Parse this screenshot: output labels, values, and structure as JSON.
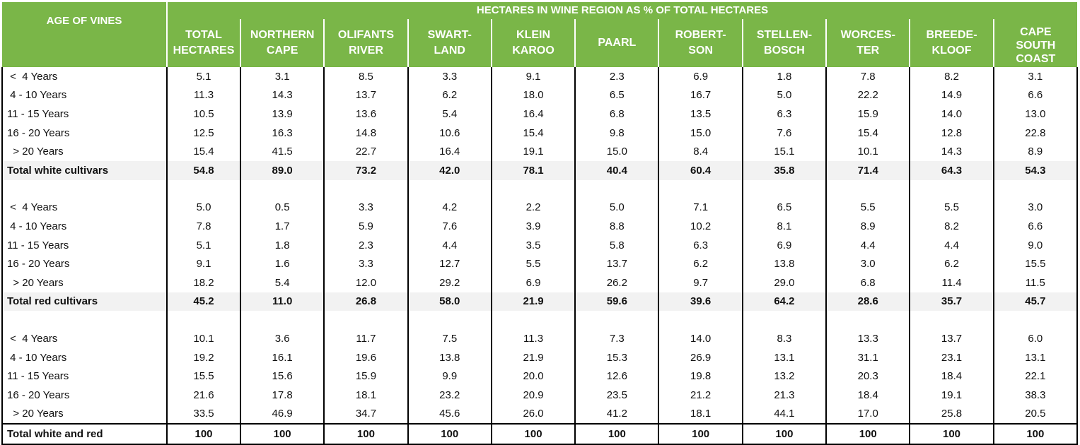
{
  "header": {
    "age_label": "AGE OF VINES",
    "super_label": "HECTARES IN WINE REGION AS % OF TOTAL HECTARES",
    "columns": [
      [
        "TOTAL",
        "HECTARES"
      ],
      [
        "NORTHERN",
        "CAPE"
      ],
      [
        "OLIFANTS",
        "RIVER"
      ],
      [
        "SWART-",
        "LAND"
      ],
      [
        "KLEIN",
        "KAROO"
      ],
      [
        "PAARL"
      ],
      [
        "ROBERT-",
        "SON"
      ],
      [
        "STELLEN-",
        "BOSCH"
      ],
      [
        "WORCES-",
        "TER"
      ],
      [
        "BREEDE-",
        "KLOOF"
      ],
      [
        "CAPE",
        "SOUTH",
        "COAST"
      ]
    ]
  },
  "sections": [
    {
      "rows": [
        {
          "label": " <  4 Years",
          "values": [
            "5.1",
            "3.1",
            "8.5",
            "3.3",
            "9.1",
            "2.3",
            "6.9",
            "1.8",
            "7.8",
            "8.2",
            "3.1"
          ]
        },
        {
          "label": " 4 - 10 Years",
          "values": [
            "11.3",
            "14.3",
            "13.7",
            "6.2",
            "18.0",
            "6.5",
            "16.7",
            "5.0",
            "22.2",
            "14.9",
            "6.6"
          ]
        },
        {
          "label": "11 - 15 Years",
          "values": [
            "10.5",
            "13.9",
            "13.6",
            "5.4",
            "16.4",
            "6.8",
            "13.5",
            "6.3",
            "15.9",
            "14.0",
            "13.0"
          ]
        },
        {
          "label": "16 - 20 Years",
          "values": [
            "12.5",
            "16.3",
            "14.8",
            "10.6",
            "15.4",
            "9.8",
            "15.0",
            "7.6",
            "15.4",
            "12.8",
            "22.8"
          ]
        },
        {
          "label": "  > 20 Years",
          "values": [
            "15.4",
            "41.5",
            "22.7",
            "16.4",
            "19.1",
            "15.0",
            "8.4",
            "15.1",
            "10.1",
            "14.3",
            "8.9"
          ]
        }
      ],
      "total": {
        "label": "Total white cultivars",
        "values": [
          "54.8",
          "89.0",
          "73.2",
          "42.0",
          "78.1",
          "40.4",
          "60.4",
          "35.8",
          "71.4",
          "64.3",
          "54.3"
        ]
      }
    },
    {
      "rows": [
        {
          "label": " <  4 Years",
          "values": [
            "5.0",
            "0.5",
            "3.3",
            "4.2",
            "2.2",
            "5.0",
            "7.1",
            "6.5",
            "5.5",
            "5.5",
            "3.0"
          ]
        },
        {
          "label": " 4 - 10 Years",
          "values": [
            "7.8",
            "1.7",
            "5.9",
            "7.6",
            "3.9",
            "8.8",
            "10.2",
            "8.1",
            "8.9",
            "8.2",
            "6.6"
          ]
        },
        {
          "label": "11 - 15 Years",
          "values": [
            "5.1",
            "1.8",
            "2.3",
            "4.4",
            "3.5",
            "5.8",
            "6.3",
            "6.9",
            "4.4",
            "4.4",
            "9.0"
          ]
        },
        {
          "label": "16 - 20 Years",
          "values": [
            "9.1",
            "1.6",
            "3.3",
            "12.7",
            "5.5",
            "13.7",
            "6.2",
            "13.8",
            "3.0",
            "6.2",
            "15.5"
          ]
        },
        {
          "label": "  > 20 Years",
          "values": [
            "18.2",
            "5.4",
            "12.0",
            "29.2",
            "6.9",
            "26.2",
            "9.7",
            "29.0",
            "6.8",
            "11.4",
            "11.5"
          ]
        }
      ],
      "total": {
        "label": "Total red cultivars",
        "values": [
          "45.2",
          "11.0",
          "26.8",
          "58.0",
          "21.9",
          "59.6",
          "39.6",
          "64.2",
          "28.6",
          "35.7",
          "45.7"
        ]
      }
    },
    {
      "rows": [
        {
          "label": " <  4 Years",
          "values": [
            "10.1",
            "3.6",
            "11.7",
            "7.5",
            "11.3",
            "7.3",
            "14.0",
            "8.3",
            "13.3",
            "13.7",
            "6.0"
          ]
        },
        {
          "label": " 4 - 10 Years",
          "values": [
            "19.2",
            "16.1",
            "19.6",
            "13.8",
            "21.9",
            "15.3",
            "26.9",
            "13.1",
            "31.1",
            "23.1",
            "13.1"
          ]
        },
        {
          "label": "11 - 15 Years",
          "values": [
            "15.5",
            "15.6",
            "15.9",
            "9.9",
            "20.0",
            "12.6",
            "19.8",
            "13.2",
            "20.3",
            "18.4",
            "22.1"
          ]
        },
        {
          "label": "16 - 20 Years",
          "values": [
            "21.6",
            "17.8",
            "18.1",
            "23.2",
            "20.9",
            "23.5",
            "21.2",
            "21.3",
            "18.4",
            "19.1",
            "38.3"
          ]
        },
        {
          "label": "  > 20 Years",
          "values": [
            "33.5",
            "46.9",
            "34.7",
            "45.6",
            "26.0",
            "41.2",
            "18.1",
            "44.1",
            "17.0",
            "25.8",
            "20.5"
          ]
        }
      ],
      "total": {
        "label": "Total white and red",
        "values": [
          "100",
          "100",
          "100",
          "100",
          "100",
          "100",
          "100",
          "100",
          "100",
          "100",
          "100"
        ]
      }
    }
  ]
}
